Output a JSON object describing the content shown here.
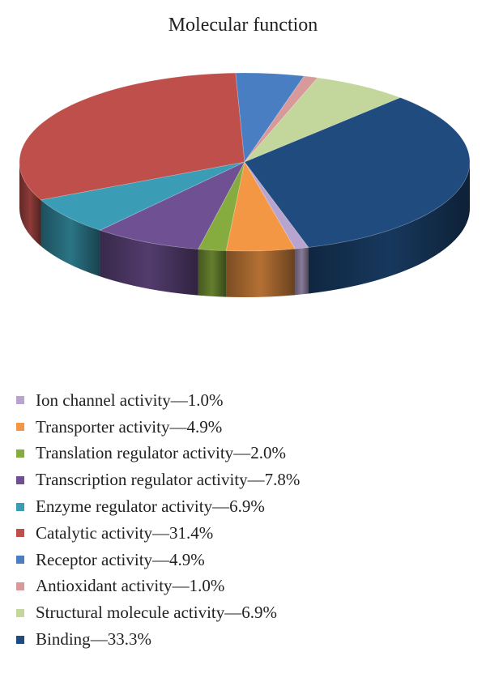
{
  "chart_data": {
    "type": "pie",
    "title": "Molecular function",
    "legend_position": "bottom",
    "slices": [
      {
        "label": "Ion channel activity",
        "value": 1.0,
        "value_label": "1.0%",
        "color": "#b7a5cf"
      },
      {
        "label": "Transporter activity",
        "value": 4.9,
        "value_label": "4.9%",
        "color": "#f49745"
      },
      {
        "label": "Translation regulator activity",
        "value": 2.0,
        "value_label": "2.0%",
        "color": "#86ab3e"
      },
      {
        "label": "Transcription regulator activity",
        "value": 7.8,
        "value_label": "7.8%",
        "color": "#6f5193"
      },
      {
        "label": "Enzyme regulator activity",
        "value": 6.9,
        "value_label": "6.9%",
        "color": "#3a9cb5"
      },
      {
        "label": "Catalytic activity",
        "value": 31.4,
        "value_label": "31.4%",
        "color": "#bf4f4b"
      },
      {
        "label": "Receptor activity",
        "value": 4.9,
        "value_label": "4.9%",
        "color": "#4a7ec2"
      },
      {
        "label": "Antioxidant activity",
        "value": 1.0,
        "value_label": "1.0%",
        "color": "#d7999a"
      },
      {
        "label": "Structural molecule activity",
        "value": 6.9,
        "value_label": "6.9%",
        "color": "#c3d69b"
      },
      {
        "label": "Binding",
        "value": 33.3,
        "value_label": "33.3%",
        "color": "#1f4b7e"
      }
    ]
  }
}
